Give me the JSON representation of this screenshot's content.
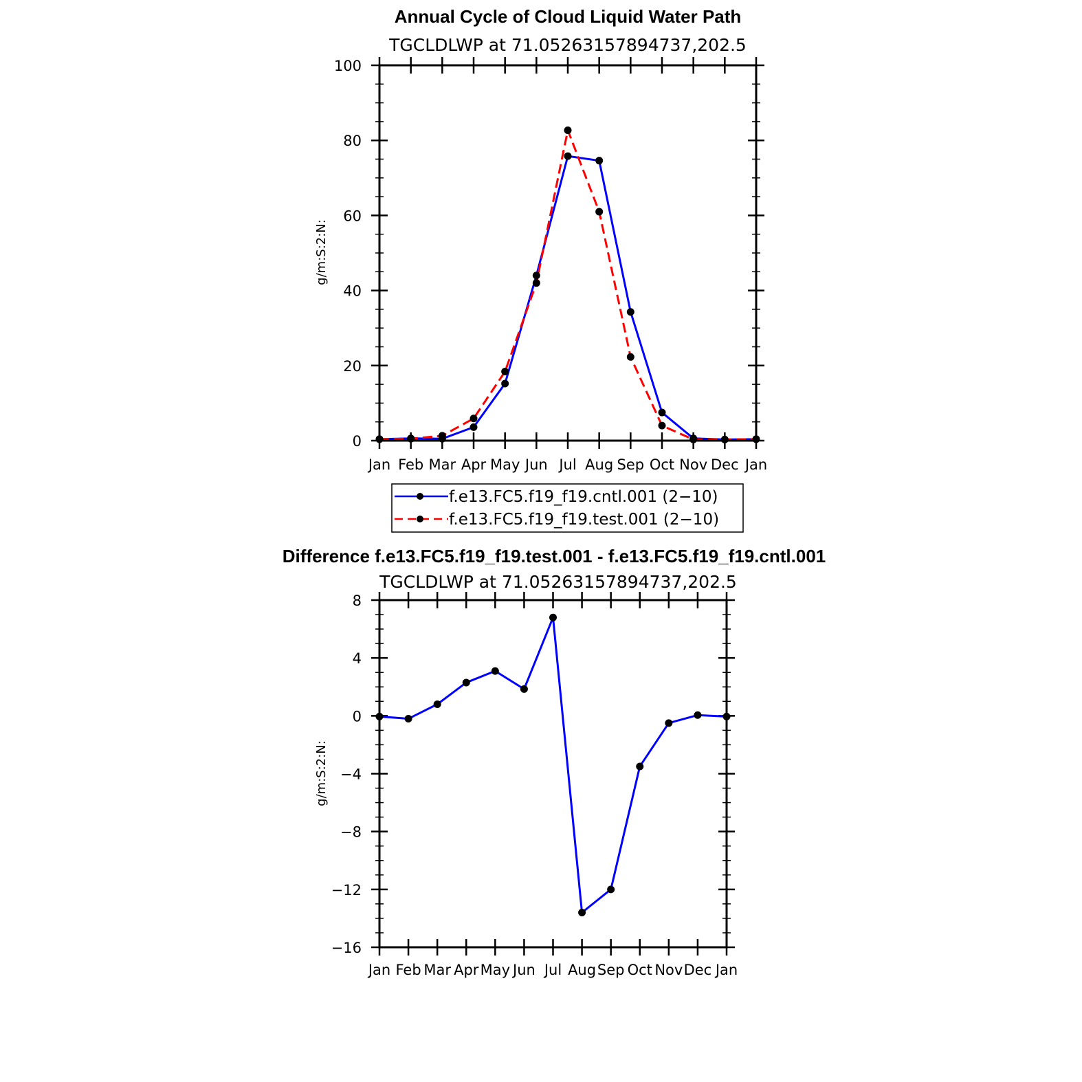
{
  "chart_data": [
    {
      "type": "line",
      "title": "Annual Cycle of Cloud Liquid Water Path",
      "subtitle": "TGCLDLWP  at  71.05263157894737,202.5",
      "ylabel": "g/m:S:2:N:",
      "xlabel": "",
      "ylim": [
        0,
        100
      ],
      "ytick_labels": [
        "0",
        "20",
        "40",
        "60",
        "80",
        "100"
      ],
      "ytick_values": [
        0,
        20,
        40,
        60,
        80,
        100
      ],
      "categories": [
        "Jan",
        "Feb",
        "Mar",
        "Apr",
        "May",
        "Jun",
        "Jul",
        "Aug",
        "Sep",
        "Oct",
        "Nov",
        "Dec",
        "Jan"
      ],
      "legend_position": "bottom",
      "series": [
        {
          "name": "f.e13.FC5.f19_f19.cntl.001 (2−10)",
          "color": "#0000ff",
          "dash": "solid",
          "values": [
            0.4,
            0.6,
            0.5,
            3.6,
            15.2,
            44.0,
            75.8,
            74.6,
            34.3,
            7.5,
            0.6,
            0.3,
            0.4
          ]
        },
        {
          "name": "f.e13.FC5.f19_f19.test.001 (2−10)",
          "color": "#ff0000",
          "dash": "dashed",
          "values": [
            0.4,
            0.5,
            1.3,
            5.9,
            18.4,
            42.0,
            82.7,
            61.0,
            22.3,
            4.0,
            0.3,
            0.3,
            0.4
          ]
        }
      ]
    },
    {
      "type": "line",
      "title": "Difference f.e13.FC5.f19_f19.test.001 - f.e13.FC5.f19_f19.cntl.001",
      "subtitle": "TGCLDLWP  at  71.05263157894737,202.5",
      "ylabel": "g/m:S:2:N:",
      "xlabel": "",
      "ylim": [
        -16,
        8
      ],
      "ytick_labels": [
        "−16",
        "−12",
        "−8",
        "−4",
        "0",
        "4",
        "8"
      ],
      "ytick_values": [
        -16,
        -12,
        -8,
        -4,
        0,
        4,
        8
      ],
      "categories": [
        "Jan",
        "Feb",
        "Mar",
        "Apr",
        "May",
        "Jun",
        "Jul",
        "Aug",
        "Sep",
        "Oct",
        "Nov",
        "Dec",
        "Jan"
      ],
      "series": [
        {
          "name": "difference",
          "color": "#0000ff",
          "dash": "solid",
          "values": [
            -0.05,
            -0.2,
            0.8,
            2.3,
            3.1,
            1.85,
            6.8,
            -13.6,
            -12.0,
            -3.5,
            -0.5,
            0.05,
            -0.05
          ]
        }
      ]
    }
  ]
}
